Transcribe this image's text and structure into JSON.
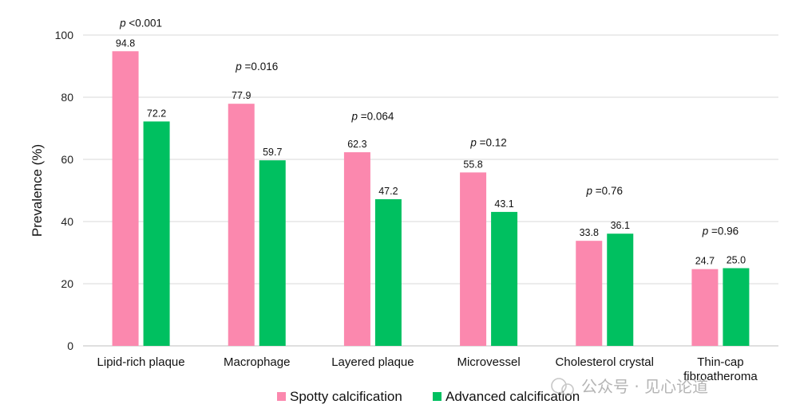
{
  "chart_data": {
    "type": "bar",
    "title": "",
    "xlabel": "",
    "ylabel": "Prevalence (%)",
    "ylim": [
      0,
      100
    ],
    "yticks": [
      0,
      20,
      40,
      60,
      80,
      100
    ],
    "grid": true,
    "legend_position": "bottom",
    "categories": [
      [
        "Lipid-rich plaque"
      ],
      [
        "Macrophage"
      ],
      [
        "Layered plaque"
      ],
      [
        "Microvessel"
      ],
      [
        "Cholesterol crystal"
      ],
      [
        "Thin-cap",
        "fibroatheroma"
      ]
    ],
    "series": [
      {
        "name": "Spotty calcification",
        "color": "#fb88ae",
        "values": [
          94.8,
          77.9,
          62.3,
          55.8,
          33.8,
          24.7
        ],
        "labels": [
          "94.8",
          "77.9",
          "62.3",
          "55.8",
          "33.8",
          "24.7"
        ]
      },
      {
        "name": "Advanced calcification",
        "color": "#00c060",
        "values": [
          72.2,
          59.7,
          47.2,
          43.1,
          36.1,
          25.0
        ],
        "labels": [
          "72.2",
          "59.7",
          "47.2",
          "43.1",
          "36.1",
          "25.0"
        ]
      }
    ],
    "annotations": [
      {
        "italic": "p",
        "text": " <0.001",
        "at": 104
      },
      {
        "italic": "p",
        "text": " =0.016",
        "at": 90
      },
      {
        "italic": "p",
        "text": " =0.064",
        "at": 74
      },
      {
        "italic": "p",
        "text": " =0.12",
        "at": 65.5
      },
      {
        "italic": "p",
        "text": " =0.76",
        "at": 50
      },
      {
        "italic": "p",
        "text": " =0.96",
        "at": 37
      }
    ]
  },
  "watermark": "公众号 · 见心论道",
  "colors": {
    "grid": "#d9d9d9",
    "axis": "#bfbfbf"
  }
}
